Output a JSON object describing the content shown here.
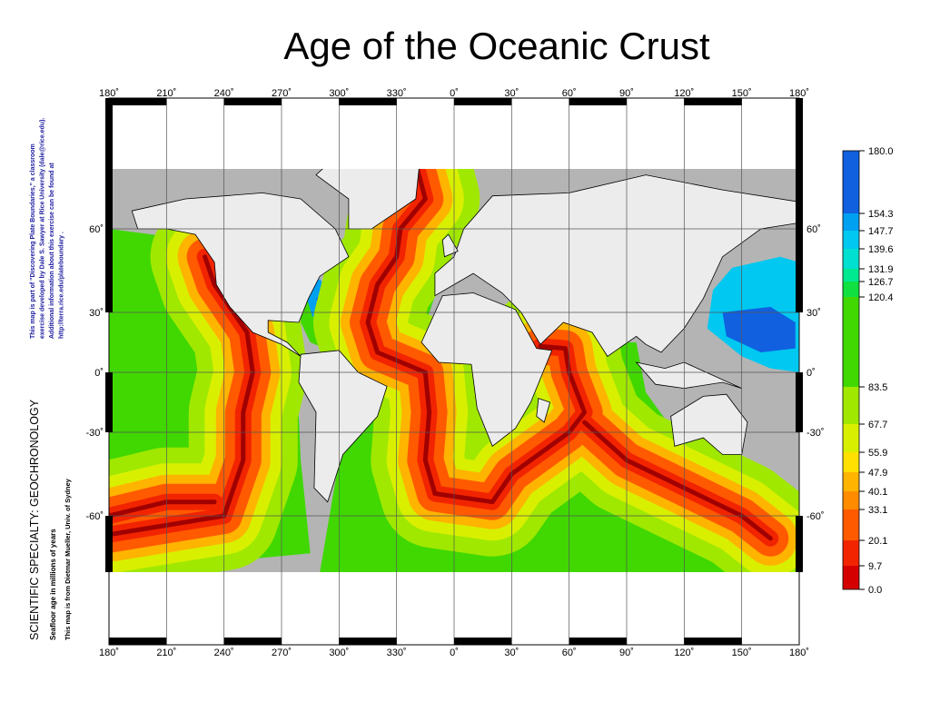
{
  "title": "Age of the Oceanic Crust",
  "map": {
    "top_labels": [
      "180˚",
      "210˚",
      "240˚",
      "270˚",
      "300˚",
      "330˚",
      "0˚",
      "30˚",
      "60˚",
      "90˚",
      "120˚",
      "150˚",
      "180˚"
    ],
    "bottom_labels": [
      "180˚",
      "210˚",
      "240˚",
      "270˚",
      "300˚",
      "330˚",
      "0˚",
      "30˚",
      "60˚",
      "90˚",
      "120˚",
      "150˚",
      "180˚"
    ],
    "left_labels": [
      "60˚",
      "30˚",
      "0˚",
      "-30˚",
      "-60˚"
    ],
    "right_labels": [
      "60˚",
      "30˚",
      "0˚",
      "-30˚",
      "-60˚"
    ]
  },
  "colorbar": {
    "labels": [
      "180.0",
      "154.3",
      "147.7",
      "139.6",
      "131.9",
      "126.7",
      "120.4",
      "83.5",
      "67.7",
      "55.9",
      "47.9",
      "40.1",
      "33.1",
      "20.1",
      "9.7",
      "0.0"
    ],
    "colors": [
      "#1060e0",
      "#00a0f0",
      "#00c8f0",
      "#00e0d0",
      "#00e890",
      "#10e040",
      "#40d800",
      "#a0e800",
      "#d8f000",
      "#ffe000",
      "#ffb400",
      "#ff8c00",
      "#ff5a00",
      "#f22400",
      "#d40000"
    ]
  },
  "side_text": {
    "specialty": "SCIENTIFIC SPECIALTY: GEOCHRONOLOGY",
    "caption": "Seafloor age in millions of years",
    "source": "This map is from Dietmar Mueller, Univ. of Sydney",
    "credit_lines": [
      "This map is part of \"Discovering Plate Boundaries,\" a classroom",
      "exercise developed by Dale S. Sawyer at Rice University (dale@rice.edu).",
      "Additional information about this exercise can be found at",
      "http://terra.rice.edu/plateboundary ."
    ]
  }
}
